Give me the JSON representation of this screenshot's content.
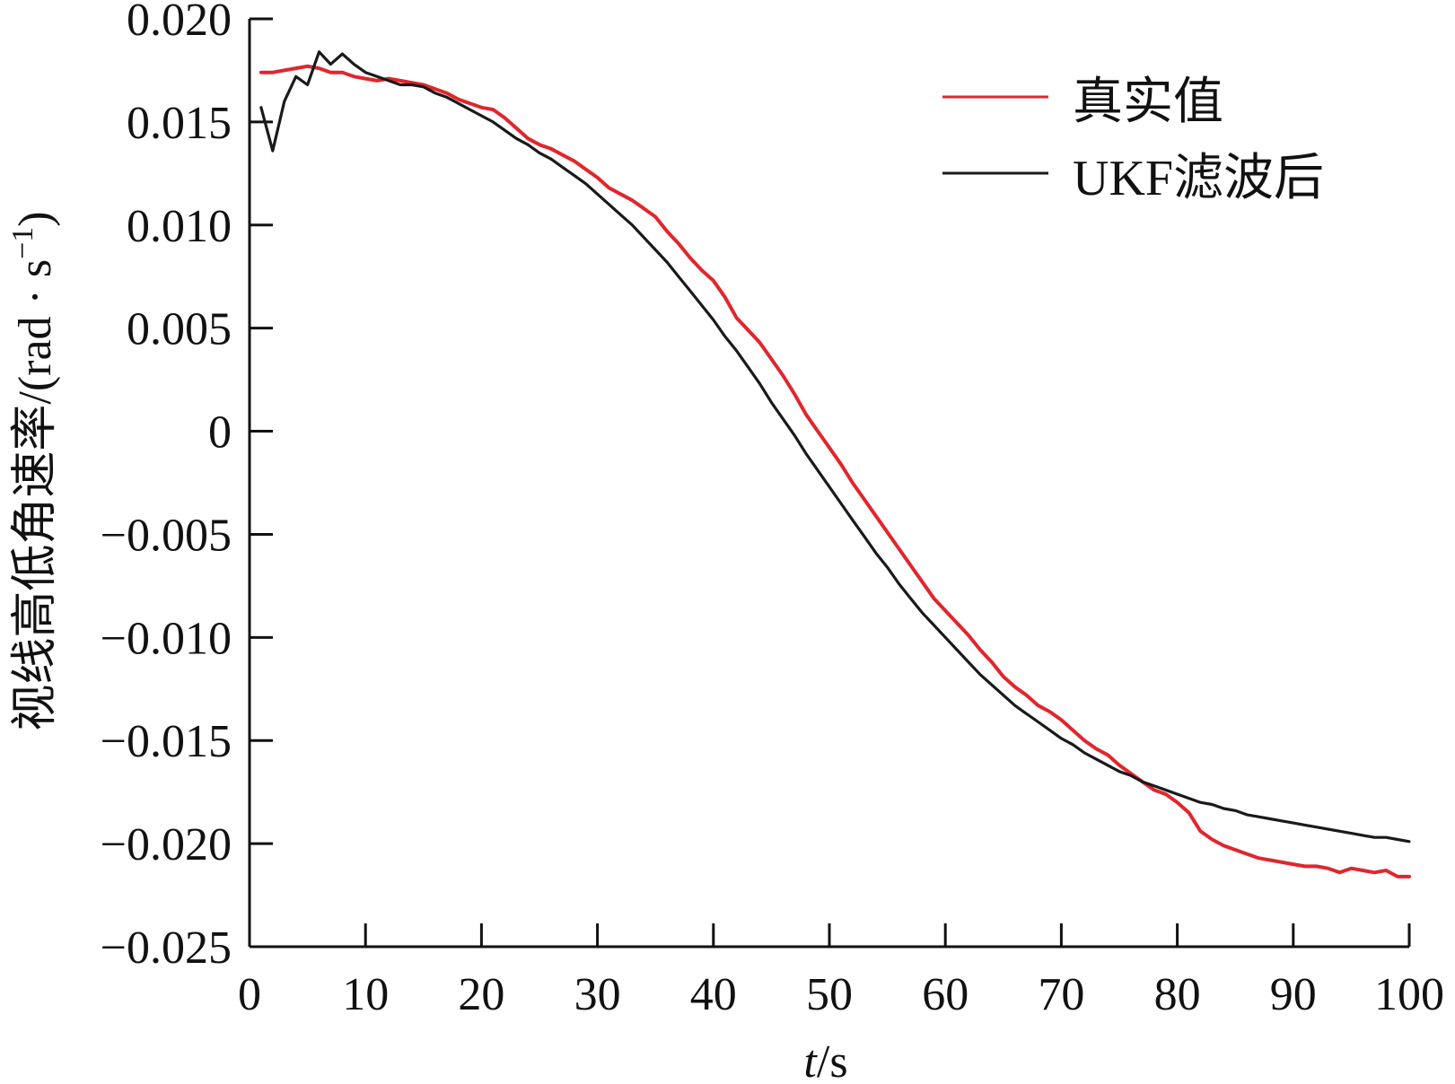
{
  "chart_data": {
    "type": "line",
    "title": "",
    "xlabel_italic": "t",
    "xlabel_rest": "/s",
    "ylabel": "视线高低角速率/(rad · s",
    "ylabel_sup": "−1",
    "ylabel_close": ")",
    "xlim": [
      0,
      100
    ],
    "ylim": [
      -0.025,
      0.02
    ],
    "xticks": [
      0,
      10,
      20,
      30,
      40,
      50,
      60,
      70,
      80,
      90,
      100
    ],
    "xtick_labels": [
      "0",
      "10",
      "20",
      "30",
      "40",
      "50",
      "60",
      "70",
      "80",
      "90",
      "100"
    ],
    "yticks": [
      0.02,
      0.015,
      0.01,
      0.005,
      0,
      -0.005,
      -0.01,
      -0.015,
      -0.02,
      -0.025
    ],
    "ytick_labels": [
      "0.020",
      "0.015",
      "0.010",
      "0.005",
      "0",
      "−0.005",
      "−0.010",
      "−0.015",
      "−0.020",
      "−0.025"
    ],
    "grid": false,
    "legend_position": "top-right",
    "series": [
      {
        "name": "真实值",
        "color": "#e0262e",
        "x": [
          1,
          2,
          3,
          4,
          5,
          6,
          7,
          8,
          9,
          10,
          11,
          12,
          13,
          14,
          15,
          16,
          17,
          18,
          19,
          20,
          21,
          22,
          23,
          24,
          25,
          26,
          27,
          28,
          29,
          30,
          31,
          32,
          33,
          34,
          35,
          36,
          37,
          38,
          39,
          40,
          41,
          42,
          43,
          44,
          45,
          46,
          47,
          48,
          49,
          50,
          51,
          52,
          53,
          54,
          55,
          56,
          57,
          58,
          59,
          60,
          61,
          62,
          63,
          64,
          65,
          66,
          67,
          68,
          69,
          70,
          71,
          72,
          73,
          74,
          75,
          76,
          77,
          78,
          79,
          80,
          81,
          82,
          83,
          84,
          85,
          86,
          87,
          88,
          89,
          90,
          91,
          92,
          93,
          94,
          95,
          96,
          97,
          98,
          99,
          100
        ],
        "y": [
          0.0174,
          0.0174,
          0.0175,
          0.0176,
          0.0177,
          0.0176,
          0.0174,
          0.0174,
          0.0172,
          0.0171,
          0.017,
          0.0171,
          0.017,
          0.0169,
          0.0168,
          0.0166,
          0.0164,
          0.0161,
          0.0159,
          0.0157,
          0.0156,
          0.0152,
          0.0147,
          0.0142,
          0.0139,
          0.0137,
          0.0134,
          0.0131,
          0.0127,
          0.0123,
          0.0118,
          0.0115,
          0.0112,
          0.0108,
          0.0104,
          0.0097,
          0.0091,
          0.0084,
          0.0078,
          0.0073,
          0.0065,
          0.0055,
          0.0049,
          0.0043,
          0.0035,
          0.0027,
          0.0018,
          0.0008,
          0.0,
          -0.0008,
          -0.0016,
          -0.0025,
          -0.0033,
          -0.0041,
          -0.0049,
          -0.0057,
          -0.0065,
          -0.0073,
          -0.0081,
          -0.0087,
          -0.0093,
          -0.0099,
          -0.0106,
          -0.0112,
          -0.0119,
          -0.0124,
          -0.0128,
          -0.0133,
          -0.0136,
          -0.014,
          -0.0145,
          -0.015,
          -0.0154,
          -0.0157,
          -0.0162,
          -0.0166,
          -0.017,
          -0.0174,
          -0.0176,
          -0.018,
          -0.0185,
          -0.0194,
          -0.0198,
          -0.0201,
          -0.0203,
          -0.0205,
          -0.0207,
          -0.0208,
          -0.0209,
          -0.021,
          -0.0211,
          -0.0211,
          -0.0212,
          -0.0214,
          -0.0212,
          -0.0213,
          -0.0214,
          -0.0213,
          -0.0216,
          -0.0216
        ]
      },
      {
        "name": "UKF滤波后",
        "color": "#1a1a1a",
        "x": [
          1,
          2,
          3,
          4,
          5,
          6,
          7,
          8,
          9,
          10,
          11,
          12,
          13,
          14,
          15,
          16,
          17,
          18,
          19,
          20,
          21,
          22,
          23,
          24,
          25,
          26,
          27,
          28,
          29,
          30,
          31,
          32,
          33,
          34,
          35,
          36,
          37,
          38,
          39,
          40,
          41,
          42,
          43,
          44,
          45,
          46,
          47,
          48,
          49,
          50,
          51,
          52,
          53,
          54,
          55,
          56,
          57,
          58,
          59,
          60,
          61,
          62,
          63,
          64,
          65,
          66,
          67,
          68,
          69,
          70,
          71,
          72,
          73,
          74,
          75,
          76,
          77,
          78,
          79,
          80,
          81,
          82,
          83,
          84,
          85,
          86,
          87,
          88,
          89,
          90,
          91,
          92,
          93,
          94,
          95,
          96,
          97,
          98,
          99,
          100
        ],
        "y": [
          0.0157,
          0.0136,
          0.016,
          0.0172,
          0.0168,
          0.0184,
          0.0178,
          0.0183,
          0.0178,
          0.0174,
          0.0172,
          0.017,
          0.0168,
          0.0168,
          0.0167,
          0.0164,
          0.0162,
          0.0159,
          0.0156,
          0.0153,
          0.015,
          0.0146,
          0.0142,
          0.0139,
          0.0135,
          0.0132,
          0.0128,
          0.0124,
          0.012,
          0.0115,
          0.011,
          0.0105,
          0.01,
          0.0094,
          0.0088,
          0.0082,
          0.0075,
          0.0068,
          0.0061,
          0.0054,
          0.0046,
          0.0039,
          0.0031,
          0.0023,
          0.0014,
          0.0006,
          -0.0002,
          -0.0011,
          -0.0019,
          -0.0027,
          -0.0035,
          -0.0043,
          -0.0051,
          -0.0059,
          -0.0066,
          -0.0074,
          -0.0081,
          -0.0088,
          -0.0094,
          -0.01,
          -0.0106,
          -0.0112,
          -0.0118,
          -0.0123,
          -0.0128,
          -0.0133,
          -0.0137,
          -0.0141,
          -0.0145,
          -0.0149,
          -0.0152,
          -0.0156,
          -0.0159,
          -0.0162,
          -0.0165,
          -0.0167,
          -0.017,
          -0.0172,
          -0.0174,
          -0.0176,
          -0.0178,
          -0.018,
          -0.0181,
          -0.0183,
          -0.0184,
          -0.0186,
          -0.0187,
          -0.0188,
          -0.0189,
          -0.019,
          -0.0191,
          -0.0192,
          -0.0193,
          -0.0194,
          -0.0195,
          -0.0196,
          -0.0197,
          -0.0197,
          -0.0198,
          -0.0199
        ]
      }
    ]
  }
}
